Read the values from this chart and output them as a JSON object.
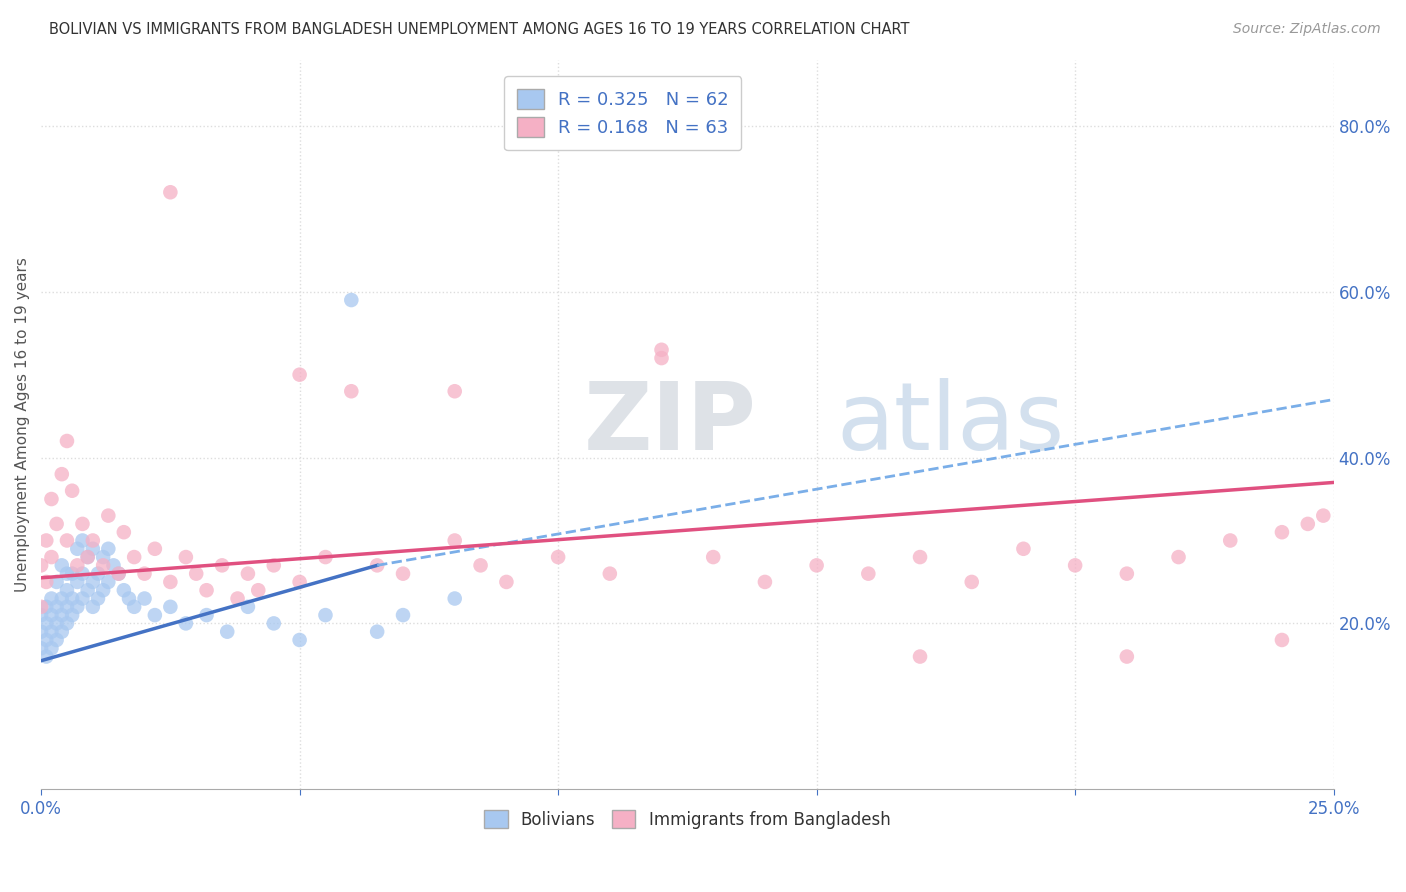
{
  "title": "BOLIVIAN VS IMMIGRANTS FROM BANGLADESH UNEMPLOYMENT AMONG AGES 16 TO 19 YEARS CORRELATION CHART",
  "source": "Source: ZipAtlas.com",
  "ylabel": "Unemployment Among Ages 16 to 19 years",
  "xlim": [
    0.0,
    0.25
  ],
  "ylim": [
    0.0,
    0.88
  ],
  "yticks_right": [
    0.2,
    0.4,
    0.6,
    0.8
  ],
  "ytickslabels_right": [
    "20.0%",
    "40.0%",
    "60.0%",
    "80.0%"
  ],
  "blue_color": "#a8c8f0",
  "pink_color": "#f5b0c5",
  "blue_line_solid_color": "#4472c4",
  "blue_line_dash_color": "#7aaee8",
  "pink_line_color": "#e05080",
  "grid_color": "#dddddd",
  "watermark_zip_color": "#d0d8e8",
  "watermark_atlas_color": "#b8cce0",
  "bolivians_x": [
    0.0,
    0.0,
    0.0,
    0.001,
    0.001,
    0.001,
    0.001,
    0.002,
    0.002,
    0.002,
    0.002,
    0.003,
    0.003,
    0.003,
    0.003,
    0.004,
    0.004,
    0.004,
    0.004,
    0.005,
    0.005,
    0.005,
    0.005,
    0.006,
    0.006,
    0.006,
    0.007,
    0.007,
    0.007,
    0.008,
    0.008,
    0.008,
    0.009,
    0.009,
    0.01,
    0.01,
    0.01,
    0.011,
    0.011,
    0.012,
    0.012,
    0.013,
    0.013,
    0.014,
    0.015,
    0.016,
    0.017,
    0.018,
    0.02,
    0.022,
    0.025,
    0.028,
    0.032,
    0.036,
    0.04,
    0.045,
    0.05,
    0.055,
    0.06,
    0.065,
    0.07,
    0.08
  ],
  "bolivians_y": [
    0.17,
    0.19,
    0.21,
    0.16,
    0.18,
    0.2,
    0.22,
    0.17,
    0.19,
    0.21,
    0.23,
    0.18,
    0.2,
    0.22,
    0.25,
    0.19,
    0.21,
    0.23,
    0.27,
    0.2,
    0.22,
    0.24,
    0.26,
    0.21,
    0.23,
    0.26,
    0.22,
    0.25,
    0.29,
    0.23,
    0.26,
    0.3,
    0.24,
    0.28,
    0.22,
    0.25,
    0.29,
    0.23,
    0.26,
    0.24,
    0.28,
    0.25,
    0.29,
    0.27,
    0.26,
    0.24,
    0.23,
    0.22,
    0.23,
    0.21,
    0.22,
    0.2,
    0.21,
    0.19,
    0.22,
    0.2,
    0.18,
    0.21,
    0.59,
    0.19,
    0.21,
    0.23
  ],
  "bangladesh_x": [
    0.0,
    0.0,
    0.001,
    0.001,
    0.002,
    0.002,
    0.003,
    0.004,
    0.005,
    0.005,
    0.006,
    0.007,
    0.008,
    0.009,
    0.01,
    0.012,
    0.013,
    0.015,
    0.016,
    0.018,
    0.02,
    0.022,
    0.025,
    0.028,
    0.03,
    0.032,
    0.035,
    0.038,
    0.04,
    0.042,
    0.045,
    0.05,
    0.055,
    0.06,
    0.065,
    0.07,
    0.08,
    0.085,
    0.09,
    0.1,
    0.11,
    0.12,
    0.13,
    0.14,
    0.15,
    0.16,
    0.17,
    0.18,
    0.19,
    0.2,
    0.21,
    0.22,
    0.23,
    0.24,
    0.245,
    0.248,
    0.025,
    0.05,
    0.08,
    0.12,
    0.17,
    0.21,
    0.24
  ],
  "bangladesh_y": [
    0.22,
    0.27,
    0.25,
    0.3,
    0.28,
    0.35,
    0.32,
    0.38,
    0.3,
    0.42,
    0.36,
    0.27,
    0.32,
    0.28,
    0.3,
    0.27,
    0.33,
    0.26,
    0.31,
    0.28,
    0.26,
    0.29,
    0.25,
    0.28,
    0.26,
    0.24,
    0.27,
    0.23,
    0.26,
    0.24,
    0.27,
    0.25,
    0.28,
    0.48,
    0.27,
    0.26,
    0.3,
    0.27,
    0.25,
    0.28,
    0.26,
    0.52,
    0.28,
    0.25,
    0.27,
    0.26,
    0.28,
    0.25,
    0.29,
    0.27,
    0.26,
    0.28,
    0.3,
    0.31,
    0.32,
    0.33,
    0.72,
    0.5,
    0.48,
    0.53,
    0.16,
    0.16,
    0.18
  ],
  "blue_line_x0": 0.0,
  "blue_line_y0": 0.155,
  "blue_line_x1": 0.065,
  "blue_line_y1": 0.27,
  "blue_line_dash_x0": 0.065,
  "blue_line_dash_y0": 0.27,
  "blue_line_dash_x1": 0.25,
  "blue_line_dash_y1": 0.47,
  "pink_line_x0": 0.0,
  "pink_line_y0": 0.255,
  "pink_line_x1": 0.25,
  "pink_line_y1": 0.37
}
